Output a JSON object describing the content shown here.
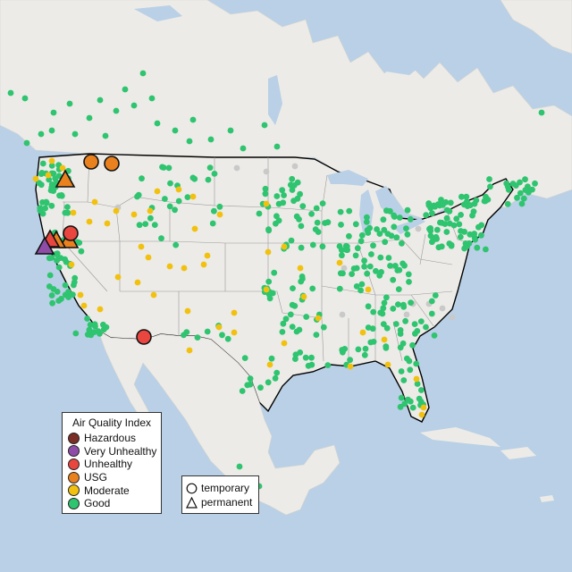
{
  "legend": {
    "title": "Air Quality Index",
    "categories": [
      {
        "label": "Hazardous",
        "color": "#7b2d26"
      },
      {
        "label": "Very Unhealthy",
        "color": "#8e4ca7"
      },
      {
        "label": "Unhealthy",
        "color": "#e8463f"
      },
      {
        "label": "USG",
        "color": "#e9811f"
      },
      {
        "label": "Moderate",
        "color": "#f2c10f"
      },
      {
        "label": "Good",
        "color": "#2fc46f"
      }
    ]
  },
  "monitor_types": {
    "temporary": "temporary",
    "permanent": "permanent"
  },
  "colors": {
    "water": "#b9d0e6",
    "land": "#ecebe7",
    "no_data": "#c9c9c9"
  }
}
